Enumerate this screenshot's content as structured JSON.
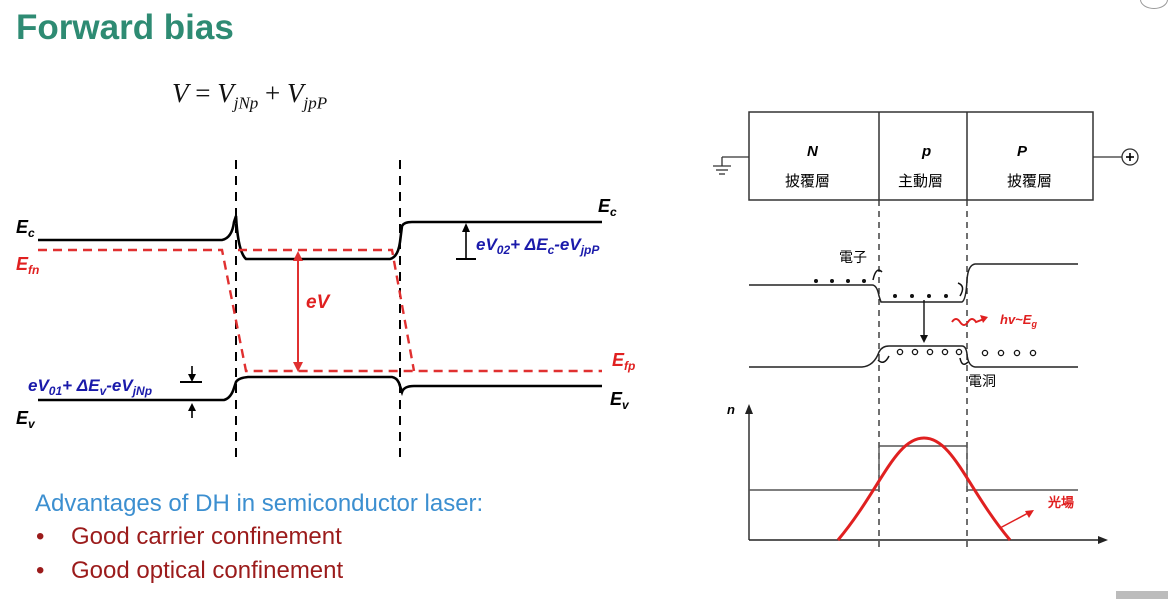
{
  "title": "Forward bias",
  "formula": {
    "v": "V",
    "eq": " = ",
    "v1": "V",
    "s1": "jNp",
    "plus": " + ",
    "v2": "V",
    "s2": "jpP"
  },
  "band_diagram": {
    "ec_left": "E",
    "ec_left_sub": "c",
    "ec_right": "E",
    "ec_right_sub": "c",
    "efn": "E",
    "efn_sub": "fn",
    "efp": "E",
    "efp_sub": "fp",
    "ev_left": "E",
    "ev_left_sub": "v",
    "ev_right": "E",
    "ev_right_sub": "v",
    "ev_label": "eV",
    "right_offset": {
      "a": "eV",
      "a_sub": "02",
      "b": "+ ΔE",
      "b_sub": "c",
      "c": "-eV",
      "c_sub": "jpP"
    },
    "left_offset": {
      "a": "eV",
      "a_sub": "01",
      "b": "+ ΔE",
      "b_sub": "v",
      "c": "-eV",
      "c_sub": "jNp"
    },
    "colors": {
      "band": "#000000",
      "fermi": "#e03030",
      "label_red": "#e02020",
      "label_blue": "#1a1aaa"
    }
  },
  "dh_structure": {
    "layers": [
      {
        "type": "N",
        "name": "披覆層"
      },
      {
        "type": "p",
        "name": "主動層"
      },
      {
        "type": "P",
        "name": "披覆層"
      }
    ],
    "electron_label": "電子",
    "hole_label": "電洞",
    "photon": {
      "h": "hv",
      "tilde": "~",
      "e": "E",
      "sub": "g"
    },
    "n_axis": "n",
    "light_field_label": "光場",
    "colors": {
      "light": "#e02020"
    }
  },
  "advantages": {
    "heading": "Advantages of DH in semiconductor laser:",
    "items": [
      "Good carrier confinement",
      "Good optical confinement"
    ],
    "bullet": "•"
  }
}
